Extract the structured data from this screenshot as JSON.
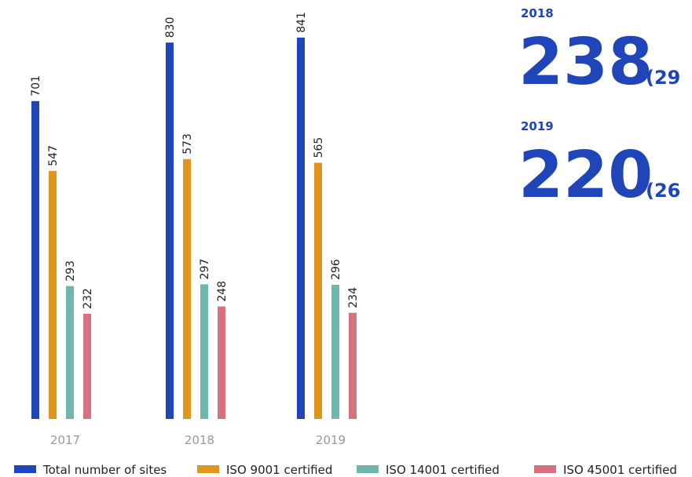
{
  "chart_data": {
    "type": "bar",
    "categories": [
      "2017",
      "2018",
      "2019"
    ],
    "series": [
      {
        "name": "Total number of sites",
        "color": "#1f45b8",
        "values": [
          701,
          830,
          841
        ]
      },
      {
        "name": "ISO 9001 certified",
        "color": "#e0951e",
        "values": [
          547,
          573,
          565
        ]
      },
      {
        "name": "ISO 14001 certified",
        "color": "#6fb7ad",
        "values": [
          293,
          297,
          296
        ]
      },
      {
        "name": "ISO 45001 certified",
        "color": "#d7707f",
        "values": [
          232,
          248,
          234
        ]
      }
    ],
    "ylim": [
      0,
      900
    ],
    "grid": false,
    "legend": "bottom"
  },
  "side_panel": [
    {
      "year": "2018",
      "value": 238,
      "note": "(29"
    },
    {
      "year": "2019",
      "value": 220,
      "note": "(26"
    }
  ]
}
